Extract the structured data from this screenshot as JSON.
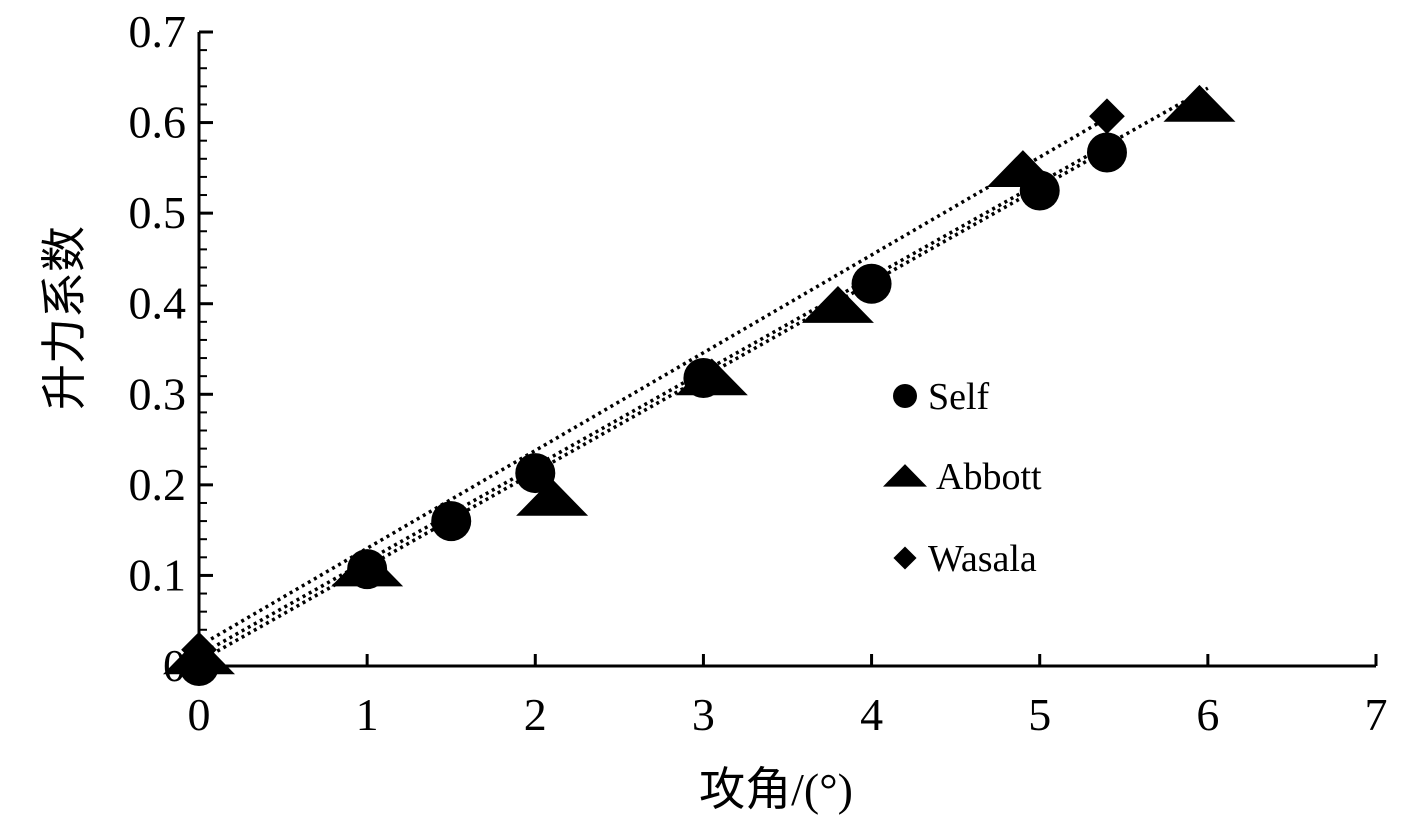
{
  "chart_data": {
    "type": "scatter",
    "xlabel": "攻角/(°)",
    "ylabel": "升力系数",
    "xlim": [
      0,
      7
    ],
    "ylim": [
      0,
      0.7
    ],
    "x_ticks": [
      "0",
      "1",
      "2",
      "3",
      "4",
      "5",
      "6",
      "7"
    ],
    "y_ticks": [
      "0",
      "0.1",
      "0.2",
      "0.3",
      "0.4",
      "0.5",
      "0.6",
      "0.7"
    ],
    "legend_position": "right-middle",
    "trendline_style": "dotted",
    "series": [
      {
        "name": "Self",
        "marker": "circle",
        "points": [
          [
            0,
            0
          ],
          [
            1,
            0.107
          ],
          [
            1.5,
            0.16
          ],
          [
            2,
            0.213
          ],
          [
            3,
            0.318
          ],
          [
            4,
            0.422
          ],
          [
            5,
            0.525
          ],
          [
            5.4,
            0.567
          ]
        ],
        "trend": [
          [
            0,
            0.005
          ],
          [
            5.4,
            0.57
          ]
        ]
      },
      {
        "name": "Abbott",
        "marker": "triangle",
        "points": [
          [
            0,
            0.01
          ],
          [
            1,
            0.107
          ],
          [
            2.1,
            0.185
          ],
          [
            3.05,
            0.318
          ],
          [
            3.8,
            0.398
          ],
          [
            4.9,
            0.548
          ],
          [
            5.95,
            0.62
          ]
        ],
        "trend": [
          [
            0,
            0.012
          ],
          [
            6,
            0.638
          ]
        ]
      },
      {
        "name": "Wasala",
        "marker": "diamond",
        "points": [
          [
            0,
            0.018
          ],
          [
            5.4,
            0.607
          ]
        ],
        "trend": [
          [
            0,
            0.022
          ],
          [
            5.4,
            0.605
          ]
        ]
      }
    ]
  }
}
